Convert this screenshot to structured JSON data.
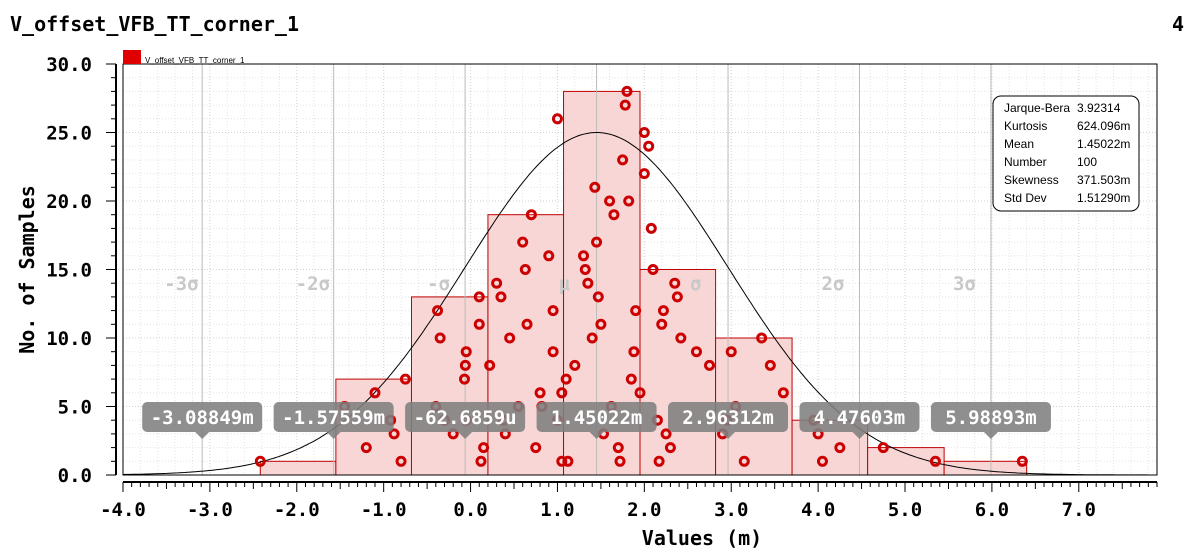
{
  "header": {
    "title": "V_offset_VFB_TT_corner_1",
    "page_number": "4"
  },
  "chart_data": {
    "type": "bar",
    "title": "V_offset_VFB_TT_corner_1",
    "xlabel": "Values (m)",
    "ylabel": "No. of Samples",
    "xlim": [
      -4.0,
      7.9
    ],
    "ylim": [
      0.0,
      30.0
    ],
    "xticks": [
      -4.0,
      -3.0,
      -2.0,
      -1.0,
      0.0,
      1.0,
      2.0,
      3.0,
      4.0,
      5.0,
      6.0,
      7.0
    ],
    "xtick_labels": [
      "-4.0",
      "-3.0",
      "-2.0",
      "-1.0",
      "0.0",
      "1.0",
      "2.0",
      "3.0",
      "4.0",
      "5.0",
      "6.0",
      "7.0"
    ],
    "yticks": [
      0,
      5,
      10,
      15,
      20,
      25,
      30
    ],
    "ytick_labels": [
      "0.0",
      "5.0",
      "10.0",
      "15.0",
      "20.0",
      "25.0",
      "30.0"
    ],
    "grid": true,
    "legend": {
      "placement": "top-left",
      "entries": [
        {
          "name": "V_offset_VFB_TT_corner_1",
          "color": "#e00000"
        }
      ]
    },
    "bins": [
      {
        "x0": -2.42,
        "x1": -1.55,
        "count": 1
      },
      {
        "x0": -1.55,
        "x1": -0.68,
        "count": 7
      },
      {
        "x0": -0.68,
        "x1": 0.2,
        "count": 13
      },
      {
        "x0": 0.2,
        "x1": 1.07,
        "count": 19
      },
      {
        "x0": 1.07,
        "x1": 1.95,
        "count": 28
      },
      {
        "x0": 1.95,
        "x1": 2.82,
        "count": 15
      },
      {
        "x0": 2.82,
        "x1": 3.7,
        "count": 10
      },
      {
        "x0": 3.7,
        "x1": 4.57,
        "count": 4
      },
      {
        "x0": 4.57,
        "x1": 5.45,
        "count": 2
      },
      {
        "x0": 5.45,
        "x1": 6.4,
        "count": 1
      }
    ],
    "points": [
      [
        -2.42,
        1
      ],
      [
        -1.45,
        5
      ],
      [
        -1.2,
        2
      ],
      [
        -1.1,
        6
      ],
      [
        -0.92,
        4
      ],
      [
        -0.88,
        3
      ],
      [
        -0.8,
        1
      ],
      [
        -0.75,
        7
      ],
      [
        -0.4,
        5
      ],
      [
        -0.38,
        12
      ],
      [
        -0.35,
        10
      ],
      [
        -0.3,
        4
      ],
      [
        -0.2,
        3
      ],
      [
        -0.05,
        9
      ],
      [
        -0.06,
        8
      ],
      [
        -0.07,
        7
      ],
      [
        -0.05,
        4
      ],
      [
        0.1,
        13
      ],
      [
        0.1,
        11
      ],
      [
        0.12,
        1
      ],
      [
        0.15,
        2
      ],
      [
        0.22,
        8
      ],
      [
        0.3,
        14
      ],
      [
        0.35,
        13
      ],
      [
        0.38,
        4
      ],
      [
        0.4,
        3
      ],
      [
        0.45,
        10
      ],
      [
        0.55,
        5
      ],
      [
        0.6,
        17
      ],
      [
        0.63,
        15
      ],
      [
        0.7,
        19
      ],
      [
        0.75,
        2
      ],
      [
        0.65,
        11
      ],
      [
        0.8,
        6
      ],
      [
        0.82,
        5
      ],
      [
        0.9,
        16
      ],
      [
        0.95,
        12
      ],
      [
        0.95,
        9
      ],
      [
        1.0,
        4
      ],
      [
        1.05,
        6
      ],
      [
        1.05,
        1
      ],
      [
        1.1,
        7
      ],
      [
        1.12,
        1
      ],
      [
        1.0,
        26
      ],
      [
        1.2,
        8
      ],
      [
        1.3,
        16
      ],
      [
        1.32,
        15
      ],
      [
        1.35,
        14
      ],
      [
        1.4,
        10
      ],
      [
        1.43,
        21
      ],
      [
        1.45,
        17
      ],
      [
        1.47,
        13
      ],
      [
        1.5,
        11
      ],
      [
        1.53,
        3
      ],
      [
        1.6,
        20
      ],
      [
        1.62,
        5
      ],
      [
        1.65,
        19
      ],
      [
        1.7,
        2
      ],
      [
        1.72,
        1
      ],
      [
        1.75,
        23
      ],
      [
        1.78,
        27
      ],
      [
        1.8,
        28
      ],
      [
        1.82,
        20
      ],
      [
        1.85,
        7
      ],
      [
        1.88,
        9
      ],
      [
        1.9,
        12
      ],
      [
        1.95,
        6
      ],
      [
        2.0,
        22
      ],
      [
        2.0,
        25
      ],
      [
        2.05,
        24
      ],
      [
        2.08,
        18
      ],
      [
        2.1,
        15
      ],
      [
        2.15,
        4
      ],
      [
        2.17,
        1
      ],
      [
        2.2,
        11
      ],
      [
        2.22,
        12
      ],
      [
        2.25,
        3
      ],
      [
        2.3,
        2
      ],
      [
        2.35,
        14
      ],
      [
        2.38,
        13
      ],
      [
        2.42,
        10
      ],
      [
        2.6,
        9
      ],
      [
        2.75,
        8
      ],
      [
        2.9,
        3
      ],
      [
        2.95,
        4
      ],
      [
        3.0,
        9
      ],
      [
        3.05,
        5
      ],
      [
        3.15,
        1
      ],
      [
        3.35,
        10
      ],
      [
        3.45,
        8
      ],
      [
        3.6,
        6
      ],
      [
        3.95,
        4
      ],
      [
        4.0,
        3
      ],
      [
        4.05,
        1
      ],
      [
        4.25,
        2
      ],
      [
        4.75,
        2
      ],
      [
        5.35,
        1
      ],
      [
        6.35,
        1
      ]
    ],
    "normal_curve": {
      "mean": 1.45022,
      "std_dev": 1.5129,
      "peak": 25.0
    },
    "sigma_lines": [
      {
        "label": "-3σ",
        "x": -3.08849
      },
      {
        "label": "-2σ",
        "x": -1.57559
      },
      {
        "label": "-σ",
        "x": -0.0626859
      },
      {
        "label": "μ",
        "x": 1.45022
      },
      {
        "label": "σ",
        "x": 2.96312
      },
      {
        "label": "2σ",
        "x": 4.47603
      },
      {
        "label": "3σ",
        "x": 5.98893
      }
    ],
    "sigma_markers": [
      {
        "label": "-3.08849m",
        "x": -3.08849
      },
      {
        "label": "-1.57559m",
        "x": -1.57559
      },
      {
        "label": "-62.6859u",
        "x": -0.0626859
      },
      {
        "label": "1.45022m",
        "x": 1.45022
      },
      {
        "label": "2.96312m",
        "x": 2.96312
      },
      {
        "label": "4.47603m",
        "x": 4.47603
      },
      {
        "label": "5.98893m",
        "x": 5.98893
      }
    ],
    "stats": [
      {
        "name": "Jarque-Bera",
        "value": "3.92314"
      },
      {
        "name": "Kurtosis",
        "value": "624.096m"
      },
      {
        "name": "Mean",
        "value": "1.45022m"
      },
      {
        "name": "Number",
        "value": "100"
      },
      {
        "name": "Skewness",
        "value": "371.503m"
      },
      {
        "name": "Std Dev",
        "value": "1.51290m"
      }
    ],
    "colors": {
      "bar_fill": "#f9d6d6",
      "bar_stroke": "#c00000",
      "point": "#cc0000",
      "curve": "#000000",
      "marker_box": "#808080"
    }
  }
}
